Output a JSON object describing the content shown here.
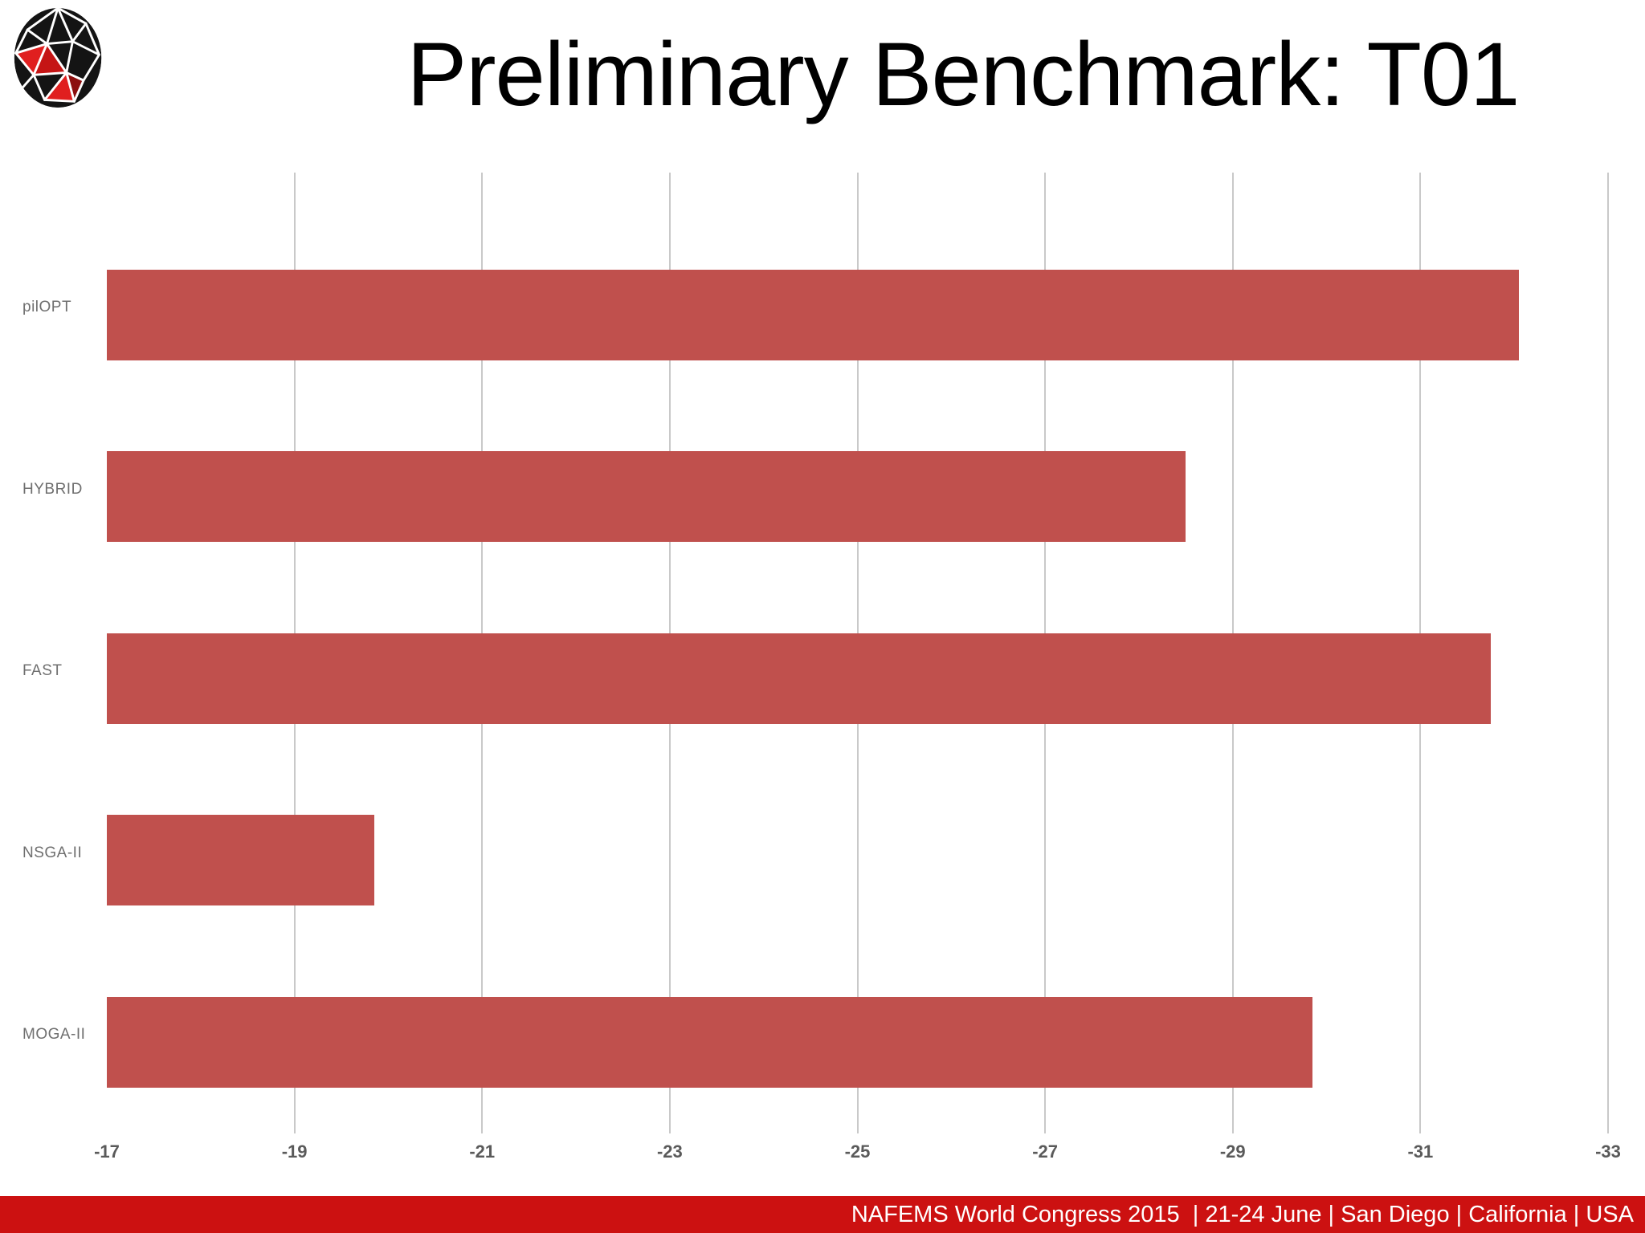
{
  "title": "Preliminary Benchmark: T01",
  "logo": {
    "name": "esteco-sphere-logo"
  },
  "footer": {
    "text": "NAFEMS World Congress 2015  | 21-24 June | San Diego | California | USA",
    "bg_color": "#cc1111",
    "text_color": "#ffffff"
  },
  "chart_data": {
    "type": "bar",
    "orientation": "horizontal",
    "title": "Preliminary Benchmark: T01",
    "categories": [
      "pilOPT",
      "HYBRID",
      "FAST",
      "NSGA-II",
      "MOGA-II"
    ],
    "values": [
      -32.05,
      -28.5,
      -31.75,
      -19.85,
      -29.85
    ],
    "xlabel": "",
    "ylabel": "",
    "xlim": [
      -17,
      -33
    ],
    "xticks": [
      "-17",
      "-19",
      "-21",
      "-23",
      "-25",
      "-27",
      "-29",
      "-31",
      "-33"
    ],
    "xtick_values": [
      -17,
      -19,
      -21,
      -23,
      -25,
      -27,
      -29,
      -31,
      -33
    ],
    "bars_anchor": -17,
    "grid": "vertical gridlines at each tick except -17",
    "legend": "none",
    "bar_color": "#c0504d",
    "gridline_color": "#c9c9c9",
    "tick_label_color": "#5a5a5a",
    "category_label_color": "#6f6f6f"
  }
}
